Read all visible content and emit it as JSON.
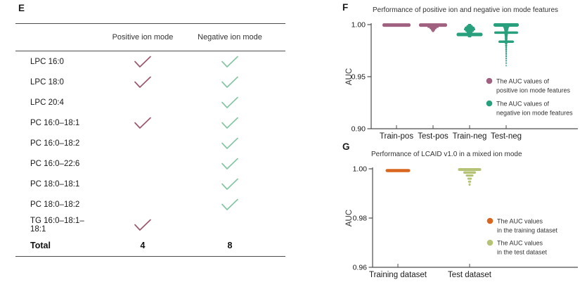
{
  "figure": {
    "background": "#ffffff",
    "rule_color": "#4d4d4d",
    "axis_color": "#4d4d4d"
  },
  "panel_e": {
    "label": "E",
    "table": {
      "columns": [
        "Positive ion mode",
        "Negative ion mode"
      ],
      "rows": [
        {
          "name": "LPC 16:0",
          "positive": true,
          "negative": true
        },
        {
          "name": "LPC 18:0",
          "positive": true,
          "negative": true
        },
        {
          "name": "LPC 20:4",
          "positive": false,
          "negative": true
        },
        {
          "name": "PC 16:0–18:1",
          "positive": true,
          "negative": true
        },
        {
          "name": "PC 16:0–18:2",
          "positive": false,
          "negative": true
        },
        {
          "name": "PC 16:0–22:6",
          "positive": false,
          "negative": true
        },
        {
          "name": "PC 18:0–18:1",
          "positive": false,
          "negative": true
        },
        {
          "name": "PC 18:0–18:2",
          "positive": false,
          "negative": true
        },
        {
          "name": "TG 16:0–18:1–18:1",
          "positive": true,
          "negative": false
        }
      ],
      "total_label": "Total",
      "total_positive": "4",
      "total_negative": "8"
    },
    "check_colors": {
      "positive": "#9c5670",
      "negative": "#85c6a4"
    }
  },
  "panel_f": {
    "label": "F"
  },
  "panel_g": {
    "label": "G"
  },
  "chart_data": [
    {
      "id": "F",
      "type": "scatter",
      "subtype": "beeswarm-strip",
      "title": "Performance of positive ion and negative ion mode features",
      "xlabel": "",
      "ylabel": "AUC",
      "ylim": [
        0.9,
        1.0
      ],
      "yticks": [
        "1.00",
        "0.95",
        "0.90"
      ],
      "categories": [
        "Train-pos",
        "Test-pos",
        "Train-neg",
        "Test-neg"
      ],
      "grid": false,
      "legend_position": "center-right",
      "series": [
        {
          "name": "The AUC values of positive ion mode features",
          "color": "#a06180",
          "categories": [
            "Train-pos",
            "Test-pos"
          ]
        },
        {
          "name": "The AUC values of negative ion mode features",
          "color": "#28a07d",
          "categories": [
            "Train-neg",
            "Test-neg"
          ]
        }
      ],
      "profile_format": "[auc_value, spread_width_px, point_row_thickness_px]",
      "groups": [
        {
          "category": "Train-pos",
          "color": "#a06180",
          "auc_min": 0.999,
          "auc_max": 1.0,
          "auc_mode": 1.0,
          "profile": [
            [
              0.9996,
              40,
              5
            ]
          ]
        },
        {
          "category": "Test-pos",
          "color": "#a06180",
          "auc_min": 0.993,
          "auc_max": 1.0,
          "auc_mode": 1.0,
          "profile": [
            [
              0.9996,
              40,
              5
            ],
            [
              0.9979,
              16,
              3
            ],
            [
              0.9965,
              10,
              3
            ],
            [
              0.9951,
              6,
              3
            ],
            [
              0.9938,
              3.5,
              3
            ]
          ]
        },
        {
          "category": "Train-neg",
          "color": "#28a07d",
          "auc_min": 0.988,
          "auc_max": 1.0,
          "auc_mode": 0.991,
          "profile": [
            [
              0.9998,
              5,
              2.5
            ],
            [
              0.9985,
              9,
              3
            ],
            [
              0.997,
              14,
              3.5
            ],
            [
              0.9955,
              16,
              3.5
            ],
            [
              0.994,
              12,
              3
            ],
            [
              0.9926,
              8,
              3
            ],
            [
              0.9905,
              37,
              5
            ],
            [
              0.9886,
              5,
              2.5
            ]
          ]
        },
        {
          "category": "Test-neg",
          "color": "#28a07d",
          "auc_min": 0.96,
          "auc_max": 1.0,
          "auc_mode": 1.0,
          "profile": [
            [
              0.9997,
              36,
              5
            ],
            [
              0.998,
              9,
              3
            ],
            [
              0.9965,
              7,
              3
            ],
            [
              0.995,
              6,
              3
            ],
            [
              0.9936,
              5,
              3
            ],
            [
              0.9923,
              34,
              3.5
            ],
            [
              0.991,
              5,
              3
            ],
            [
              0.9895,
              4.5,
              3
            ],
            [
              0.988,
              4,
              3
            ],
            [
              0.9864,
              4,
              3
            ],
            [
              0.985,
              3.5,
              3
            ],
            [
              0.9836,
              22,
              3.5
            ],
            [
              0.982,
              3.5,
              3
            ],
            [
              0.98,
              3,
              3
            ],
            [
              0.978,
              2.5,
              3
            ],
            [
              0.976,
              2.5,
              3
            ],
            [
              0.974,
              2,
              3
            ],
            [
              0.972,
              2,
              3
            ],
            [
              0.9698,
              2,
              3
            ],
            [
              0.9676,
              1.8,
              3
            ],
            [
              0.9654,
              1.6,
              3
            ],
            [
              0.963,
              1.5,
              3
            ],
            [
              0.9606,
              1.4,
              2.5
            ]
          ]
        }
      ],
      "legend": [
        {
          "color": "#a06180",
          "lines": [
            "The AUC values of",
            "positive ion mode features"
          ]
        },
        {
          "color": "#28a07d",
          "lines": [
            "The AUC values of",
            "negative ion mode features"
          ]
        }
      ]
    },
    {
      "id": "G",
      "type": "scatter",
      "subtype": "beeswarm-strip",
      "title": "Performance of LCAID v1.0 in a mixed ion mode",
      "xlabel": "",
      "ylabel": "AUC",
      "ylim": [
        0.96,
        1.0
      ],
      "yticks": [
        "1.00",
        "0.98",
        "0.96"
      ],
      "categories": [
        "Training dataset",
        "Test dataset"
      ],
      "grid": false,
      "legend_position": "center-right",
      "series": [
        {
          "name": "The AUC values in the training dataset",
          "color": "#d9661f",
          "categories": [
            "Training dataset"
          ]
        },
        {
          "name": "The AUC values in the test dataset",
          "color": "#b5c377",
          "categories": [
            "Test dataset"
          ]
        }
      ],
      "profile_format": "[auc_value, spread_width_px, point_row_thickness_px]",
      "groups": [
        {
          "category": "Training dataset",
          "color": "#d9661f",
          "auc_min": 0.999,
          "auc_max": 0.9995,
          "auc_mode": 0.9993,
          "profile": [
            [
              0.9993,
              35,
              4.5
            ]
          ]
        },
        {
          "category": "Test dataset",
          "color": "#b5c377",
          "auc_min": 0.9935,
          "auc_max": 1.0,
          "auc_mode": 0.9997,
          "profile": [
            [
              0.9997,
              33,
              4
            ],
            [
              0.9985,
              18,
              3.5
            ],
            [
              0.9973,
              11,
              3
            ],
            [
              0.996,
              6.5,
              3
            ],
            [
              0.9948,
              4.5,
              3
            ],
            [
              0.9936,
              3,
              3.5
            ]
          ]
        }
      ],
      "legend": [
        {
          "color": "#d9661f",
          "lines": [
            "The AUC values",
            "in the training dataset"
          ]
        },
        {
          "color": "#b5c377",
          "lines": [
            "The AUC values",
            "in the test dataset"
          ]
        }
      ]
    }
  ]
}
